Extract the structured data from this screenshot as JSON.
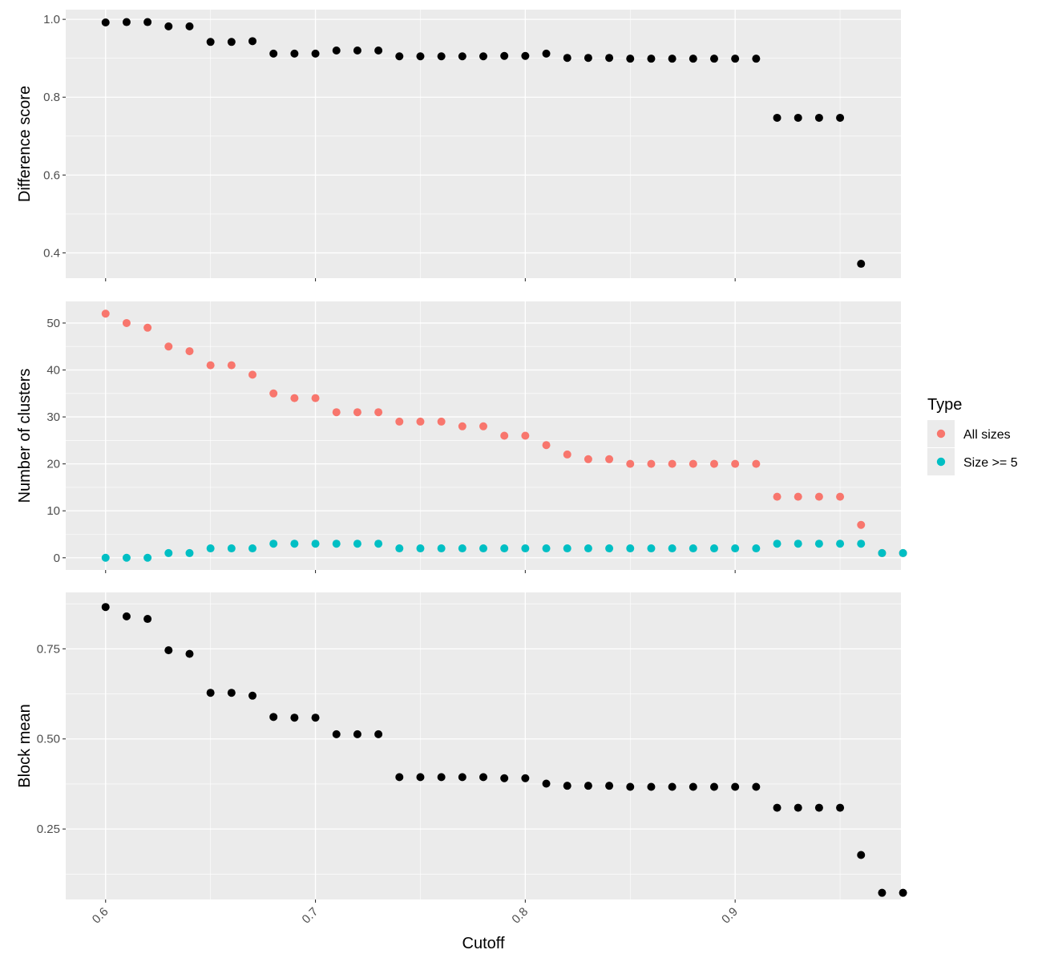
{
  "chart_data": [
    {
      "type": "scatter",
      "ylabel": "Difference score",
      "ylim": [
        0.335,
        1.025
      ],
      "yticks": [
        0.4,
        0.6,
        0.8,
        1.0
      ],
      "ytick_labels": [
        "0.4",
        "0.6",
        "0.8",
        "1.0"
      ],
      "grid": true,
      "series": [
        {
          "color": "#000000",
          "x": [
            0.6,
            0.61,
            0.62,
            0.63,
            0.64,
            0.65,
            0.66,
            0.67,
            0.68,
            0.69,
            0.7,
            0.71,
            0.72,
            0.73,
            0.74,
            0.75,
            0.76,
            0.77,
            0.78,
            0.79,
            0.8,
            0.81,
            0.82,
            0.83,
            0.84,
            0.85,
            0.86,
            0.87,
            0.88,
            0.89,
            0.9,
            0.91,
            0.92,
            0.93,
            0.94,
            0.95,
            0.96
          ],
          "values": [
            0.992,
            0.993,
            0.993,
            0.982,
            0.982,
            0.942,
            0.942,
            0.944,
            0.912,
            0.912,
            0.912,
            0.92,
            0.92,
            0.92,
            0.905,
            0.905,
            0.905,
            0.905,
            0.905,
            0.906,
            0.906,
            0.912,
            0.901,
            0.901,
            0.901,
            0.899,
            0.899,
            0.899,
            0.899,
            0.899,
            0.899,
            0.899,
            0.747,
            0.747,
            0.747,
            0.747,
            0.372
          ]
        }
      ]
    },
    {
      "type": "scatter",
      "ylabel": "Number of clusters",
      "ylim": [
        -2.6,
        54.6
      ],
      "yticks": [
        0,
        10,
        20,
        30,
        40,
        50
      ],
      "ytick_labels": [
        "0",
        "10",
        "20",
        "30",
        "40",
        "50"
      ],
      "grid": true,
      "legend": {
        "title": "Type",
        "position": "right",
        "entries": [
          "All sizes",
          "Size >= 5"
        ]
      },
      "series": [
        {
          "name": "All sizes",
          "color": "#F8766D",
          "x": [
            0.6,
            0.61,
            0.62,
            0.63,
            0.64,
            0.65,
            0.66,
            0.67,
            0.68,
            0.69,
            0.7,
            0.71,
            0.72,
            0.73,
            0.74,
            0.75,
            0.76,
            0.77,
            0.78,
            0.79,
            0.8,
            0.81,
            0.82,
            0.83,
            0.84,
            0.85,
            0.86,
            0.87,
            0.88,
            0.89,
            0.9,
            0.91,
            0.92,
            0.93,
            0.94,
            0.95,
            0.96,
            0.97,
            0.98
          ],
          "values": [
            52,
            50,
            49,
            45,
            44,
            41,
            41,
            39,
            35,
            34,
            34,
            31,
            31,
            31,
            29,
            29,
            29,
            28,
            28,
            26,
            26,
            24,
            22,
            21,
            21,
            20,
            20,
            20,
            20,
            20,
            20,
            20,
            13,
            13,
            13,
            13,
            7,
            1,
            1
          ]
        },
        {
          "name": "Size >= 5",
          "color": "#00BFC4",
          "x": [
            0.6,
            0.61,
            0.62,
            0.63,
            0.64,
            0.65,
            0.66,
            0.67,
            0.68,
            0.69,
            0.7,
            0.71,
            0.72,
            0.73,
            0.74,
            0.75,
            0.76,
            0.77,
            0.78,
            0.79,
            0.8,
            0.81,
            0.82,
            0.83,
            0.84,
            0.85,
            0.86,
            0.87,
            0.88,
            0.89,
            0.9,
            0.91,
            0.92,
            0.93,
            0.94,
            0.95,
            0.96,
            0.97,
            0.98
          ],
          "values": [
            0,
            0,
            0,
            1,
            1,
            2,
            2,
            2,
            3,
            3,
            3,
            3,
            3,
            3,
            2,
            2,
            2,
            2,
            2,
            2,
            2,
            2,
            2,
            2,
            2,
            2,
            2,
            2,
            2,
            2,
            2,
            2,
            3,
            3,
            3,
            3,
            3,
            1,
            1
          ]
        }
      ]
    },
    {
      "type": "scatter",
      "xlabel": "Cutoff",
      "ylabel": "Block mean",
      "xlim": [
        0.581,
        0.979
      ],
      "xticks": [
        0.6,
        0.7,
        0.8,
        0.9
      ],
      "xtick_labels": [
        "0.6",
        "0.7",
        "0.8",
        "0.9"
      ],
      "ylim": [
        0.0545,
        0.9065
      ],
      "yticks": [
        0.25,
        0.5,
        0.75
      ],
      "ytick_labels": [
        "0.25",
        "0.50",
        "0.75"
      ],
      "grid": true,
      "series": [
        {
          "color": "#000000",
          "x": [
            0.6,
            0.61,
            0.62,
            0.63,
            0.64,
            0.65,
            0.66,
            0.67,
            0.68,
            0.69,
            0.7,
            0.71,
            0.72,
            0.73,
            0.74,
            0.75,
            0.76,
            0.77,
            0.78,
            0.79,
            0.8,
            0.81,
            0.82,
            0.83,
            0.84,
            0.85,
            0.86,
            0.87,
            0.88,
            0.89,
            0.9,
            0.91,
            0.92,
            0.93,
            0.94,
            0.95,
            0.96,
            0.97,
            0.98
          ],
          "values": [
            0.866,
            0.84,
            0.833,
            0.746,
            0.736,
            0.628,
            0.628,
            0.62,
            0.561,
            0.559,
            0.559,
            0.513,
            0.513,
            0.513,
            0.394,
            0.394,
            0.394,
            0.394,
            0.394,
            0.391,
            0.391,
            0.376,
            0.37,
            0.37,
            0.37,
            0.367,
            0.367,
            0.367,
            0.367,
            0.367,
            0.367,
            0.367,
            0.309,
            0.309,
            0.309,
            0.309,
            0.178,
            0.073,
            0.073
          ]
        }
      ]
    }
  ]
}
